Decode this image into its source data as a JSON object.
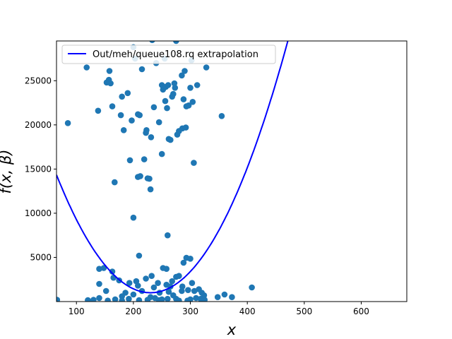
{
  "chart_data": {
    "type": "scatter",
    "title": "",
    "xlabel": "x",
    "ylabel": "f(x, β)",
    "xlim": [
      65,
      680
    ],
    "ylim": [
      0,
      29500
    ],
    "xticks": [
      100,
      200,
      300,
      400,
      500,
      600
    ],
    "yticks": [
      5000,
      10000,
      15000,
      20000,
      25000
    ],
    "grid": false,
    "legend": {
      "placement": "top-left",
      "entries": [
        "Out/meh/queue108.rq extrapolation"
      ]
    },
    "colors": {
      "points": "#1f77b4",
      "curve": "#0000ff"
    },
    "series": [
      {
        "kind": "scatter",
        "points": [
          [
            85,
            20200
          ],
          [
            118,
            26500
          ],
          [
            132,
            29800
          ],
          [
            138,
            21600
          ],
          [
            153,
            24800
          ],
          [
            157,
            25100
          ],
          [
            158,
            26100
          ],
          [
            160,
            24700
          ],
          [
            163,
            22100
          ],
          [
            178,
            21100
          ],
          [
            180,
            23200
          ],
          [
            183,
            19400
          ],
          [
            190,
            23600
          ],
          [
            194,
            16000
          ],
          [
            197,
            20500
          ],
          [
            200,
            28800
          ],
          [
            203,
            27500
          ],
          [
            208,
            21200
          ],
          [
            211,
            21100
          ],
          [
            215,
            26300
          ],
          [
            219,
            16100
          ],
          [
            222,
            19100
          ],
          [
            223,
            19400
          ],
          [
            228,
            13900
          ],
          [
            231,
            18600
          ],
          [
            233,
            29600
          ],
          [
            236,
            22000
          ],
          [
            240,
            27000
          ],
          [
            245,
            20300
          ],
          [
            250,
            16700
          ],
          [
            250,
            24500
          ],
          [
            252,
            24000
          ],
          [
            255,
            27500
          ],
          [
            256,
            22700
          ],
          [
            257,
            24300
          ],
          [
            259,
            21900
          ],
          [
            261,
            24500
          ],
          [
            262,
            18400
          ],
          [
            265,
            18300
          ],
          [
            268,
            23200
          ],
          [
            270,
            23500
          ],
          [
            272,
            24700
          ],
          [
            273,
            24200
          ],
          [
            275,
            29500
          ],
          [
            277,
            18900
          ],
          [
            280,
            19300
          ],
          [
            285,
            25600
          ],
          [
            286,
            19600
          ],
          [
            288,
            22900
          ],
          [
            290,
            26100
          ],
          [
            292,
            19700
          ],
          [
            293,
            22100
          ],
          [
            297,
            22200
          ],
          [
            300,
            24200
          ],
          [
            302,
            27300
          ],
          [
            304,
            22600
          ],
          [
            306,
            15700
          ],
          [
            312,
            24500
          ],
          [
            328,
            26500
          ],
          [
            230,
            12700
          ],
          [
            167,
            13500
          ],
          [
            200,
            9500
          ],
          [
            260,
            7500
          ],
          [
            208,
            14100
          ],
          [
            212,
            14200
          ],
          [
            225,
            13950
          ],
          [
            210,
            5200
          ],
          [
            293,
            4950
          ],
          [
            288,
            4400
          ],
          [
            300,
            4850
          ],
          [
            258,
            3700
          ],
          [
            252,
            3800
          ],
          [
            163,
            3400
          ],
          [
            140,
            3700
          ],
          [
            148,
            3800
          ],
          [
            232,
            2900
          ],
          [
            268,
            2300
          ],
          [
            280,
            2900
          ],
          [
            275,
            2800
          ],
          [
            222,
            2600
          ],
          [
            205,
            2300
          ],
          [
            243,
            2100
          ],
          [
            140,
            2000
          ],
          [
            165,
            2700
          ],
          [
            175,
            2400
          ],
          [
            193,
            2100
          ],
          [
            208,
            1800
          ],
          [
            236,
            1600
          ],
          [
            258,
            1900
          ],
          [
            265,
            1700
          ],
          [
            286,
            1700
          ],
          [
            303,
            2100
          ],
          [
            152,
            1200
          ],
          [
            186,
            1000
          ],
          [
            215,
            1200
          ],
          [
            246,
            1000
          ],
          [
            262,
            1100
          ],
          [
            285,
            1200
          ],
          [
            296,
            1300
          ],
          [
            307,
            1200
          ],
          [
            315,
            1400
          ],
          [
            320,
            1000
          ],
          [
            324,
            700
          ],
          [
            180,
            600
          ],
          [
            200,
            800
          ],
          [
            230,
            500
          ],
          [
            270,
            700
          ],
          [
            130,
            200
          ],
          [
            140,
            400
          ],
          [
            155,
            100
          ],
          [
            168,
            250
          ],
          [
            192,
            300
          ],
          [
            210,
            150
          ],
          [
            225,
            200
          ],
          [
            238,
            400
          ],
          [
            250,
            250
          ],
          [
            275,
            300
          ],
          [
            295,
            100
          ],
          [
            310,
            400
          ],
          [
            318,
            300
          ],
          [
            325,
            200
          ],
          [
            348,
            500
          ],
          [
            360,
            800
          ],
          [
            373,
            500
          ],
          [
            408,
            1600
          ],
          [
            355,
            21000
          ],
          [
            66,
            200
          ],
          [
            120,
            150
          ],
          [
            180,
            100
          ],
          [
            245,
            150
          ],
          [
            260,
            300
          ],
          [
            280,
            100
          ],
          [
            300,
            250
          ]
        ]
      },
      {
        "name": "Out/meh/queue108.rq extrapolation",
        "kind": "line",
        "model": "quadratic",
        "vertex": [
          230,
          1000
        ],
        "coefficient": 0.49,
        "x_range": [
          65,
          480
        ]
      }
    ]
  }
}
